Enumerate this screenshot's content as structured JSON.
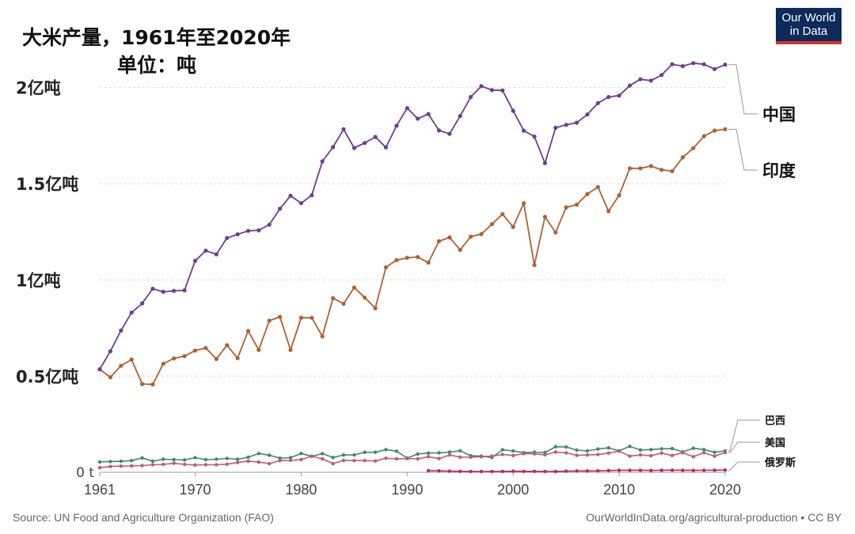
{
  "title_line1": "大米产量，1961年至2020年",
  "title_line2": "单位：吨",
  "logo": {
    "line1": "Our World",
    "line2": "in Data"
  },
  "source": "Source: UN Food and Agriculture Organization (FAO)",
  "url": "OurWorldInData.org/agricultural-production • CC BY",
  "colors": {
    "china": "#6d3e91",
    "india": "#b0602f",
    "brazil": "#3e8a67",
    "usa": "#c05a76",
    "russia": "#c4245d",
    "grid": "#d9d9d9"
  },
  "chart_data": {
    "type": "line",
    "title": "大米产量，1961年至2020年",
    "subtitle": "单位：吨",
    "x_range": [
      1961,
      2020
    ],
    "y_range": [
      0,
      220000000
    ],
    "y_ticks": [
      {
        "value": 0,
        "label": "0 t"
      },
      {
        "value": 50000000,
        "label": "0.5亿吨"
      },
      {
        "value": 100000000,
        "label": "1亿吨"
      },
      {
        "value": 150000000,
        "label": "1.5亿吨"
      },
      {
        "value": 200000000,
        "label": "2亿吨"
      }
    ],
    "x_ticks": [
      {
        "value": 1961,
        "label": "1961"
      },
      {
        "value": 1970,
        "label": "1970"
      },
      {
        "value": 1980,
        "label": "1980"
      },
      {
        "value": 1990,
        "label": "1990"
      },
      {
        "value": 2000,
        "label": "2000"
      },
      {
        "value": 2010,
        "label": "2010"
      },
      {
        "value": 2020,
        "label": "2020"
      }
    ],
    "grid": true,
    "series": [
      {
        "key": "china",
        "name": "中国",
        "start_year": 1961,
        "values": [
          53.6,
          62.9,
          73.7,
          83.0,
          87.8,
          95.4,
          93.8,
          94.3,
          94.6,
          109.9,
          115.2,
          113.3,
          121.8,
          123.7,
          125.5,
          125.8,
          128.7,
          137.0,
          143.7,
          139.9,
          144.0,
          161.6,
          169.0,
          178.3,
          168.6,
          171.2,
          174.3,
          168.9,
          180.1,
          189.3,
          183.8,
          186.2,
          177.7,
          175.9,
          185.2,
          195.1,
          200.7,
          198.7,
          198.5,
          187.9,
          177.6,
          174.5,
          160.7,
          179.1,
          180.6,
          181.7,
          186.0,
          191.9,
          195.1,
          195.8,
          201.0,
          204.3,
          203.6,
          206.5,
          212.1,
          211.1,
          212.7,
          212.1,
          209.6,
          211.9
        ]
      },
      {
        "key": "india",
        "name": "印度",
        "start_year": 1961,
        "values": [
          53.5,
          49.4,
          55.4,
          58.6,
          45.9,
          45.7,
          56.4,
          59.2,
          60.4,
          63.3,
          64.6,
          58.9,
          66.1,
          59.3,
          73.5,
          63.6,
          78.8,
          80.8,
          63.6,
          80.3,
          80.3,
          70.7,
          90.5,
          87.6,
          96.0,
          90.8,
          85.3,
          106.6,
          110.3,
          111.5,
          111.9,
          109.0,
          120.1,
          122.1,
          115.6,
          122.5,
          123.8,
          129.0,
          134.2,
          127.5,
          139.9,
          107.7,
          132.8,
          124.7,
          137.7,
          139.1,
          144.6,
          148.3,
          135.7,
          144.0,
          158.0,
          158.0,
          159.2,
          157.2,
          156.5,
          163.7,
          168.5,
          174.7,
          177.6,
          178.3
        ]
      },
      {
        "key": "brazil",
        "name": "巴西",
        "start_year": 1961,
        "values": [
          5.4,
          5.6,
          5.7,
          6.1,
          7.5,
          5.8,
          6.8,
          6.6,
          6.4,
          7.6,
          6.6,
          6.8,
          7.2,
          6.8,
          7.8,
          9.8,
          8.9,
          7.3,
          7.6,
          9.8,
          8.3,
          9.7,
          7.7,
          9.0,
          9.0,
          10.4,
          10.4,
          11.8,
          11.0,
          7.4,
          9.5,
          10.0,
          10.1,
          10.5,
          11.2,
          8.6,
          8.4,
          7.7,
          11.7,
          11.1,
          10.2,
          10.5,
          10.3,
          13.3,
          13.2,
          11.5,
          11.1,
          12.1,
          12.7,
          11.2,
          13.5,
          11.6,
          11.8,
          12.2,
          12.3,
          10.6,
          12.5,
          11.8,
          10.4,
          11.1
        ]
      },
      {
        "key": "usa",
        "name": "美国",
        "start_year": 1961,
        "values": [
          2.4,
          3.0,
          3.2,
          3.3,
          3.5,
          3.9,
          4.1,
          4.7,
          4.1,
          3.8,
          3.9,
          3.9,
          4.2,
          5.1,
          5.8,
          5.3,
          4.5,
          6.1,
          6.2,
          6.6,
          8.4,
          7.0,
          4.5,
          6.2,
          6.1,
          6.1,
          5.9,
          7.3,
          7.0,
          7.1,
          7.0,
          8.1,
          7.1,
          9.0,
          7.9,
          7.8,
          8.1,
          8.4,
          9.3,
          8.7,
          9.7,
          9.6,
          9.1,
          10.5,
          10.1,
          8.8,
          9.0,
          9.2,
          10.0,
          11.0,
          8.4,
          9.0,
          8.6,
          10.0,
          8.7,
          10.2,
          8.1,
          10.2,
          8.4,
          10.3
        ]
      },
      {
        "key": "russia",
        "name": "俄罗斯",
        "start_year": 1992,
        "values": [
          0.88,
          0.75,
          0.57,
          0.5,
          0.47,
          0.42,
          0.45,
          0.45,
          0.58,
          0.49,
          0.48,
          0.46,
          0.47,
          0.57,
          0.68,
          0.71,
          0.74,
          0.91,
          1.06,
          1.06,
          1.05,
          0.93,
          1.05,
          1.11,
          1.08,
          0.99,
          1.04,
          1.09,
          1.14
        ]
      }
    ]
  }
}
